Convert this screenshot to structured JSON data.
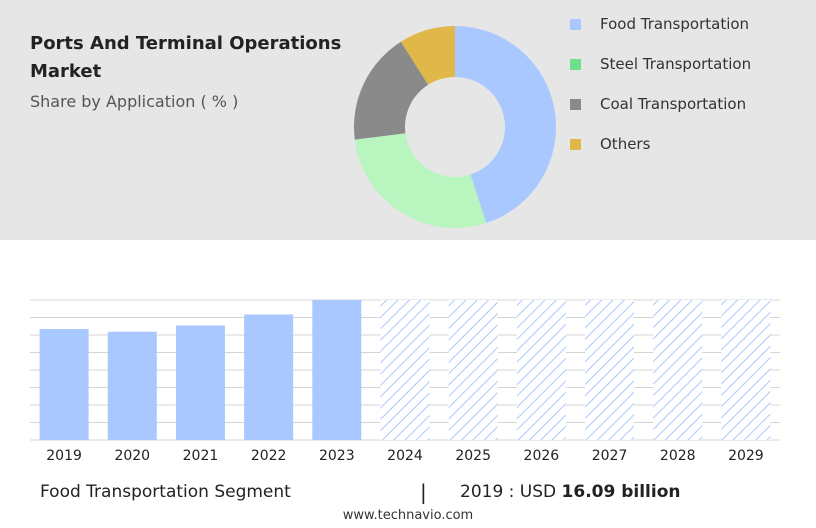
{
  "title": "Ports And Terminal Operations Market",
  "subtitle": "Share by Application ( % )",
  "legend": [
    {
      "label": "Food Transportation",
      "color": "#a8c8ff"
    },
    {
      "label": "Steel Transportation",
      "color": "#6ee08c"
    },
    {
      "label": "Coal Transportation",
      "color": "#8a8a8a"
    },
    {
      "label": "Others",
      "color": "#e0b84a"
    }
  ],
  "chart_data": [
    {
      "type": "pie",
      "subtype": "donut",
      "series": [
        {
          "name": "Food Transportation",
          "value": 45,
          "color": "#a8c8ff"
        },
        {
          "name": "Steel Transportation",
          "value": 28,
          "color": "#b8f5bf"
        },
        {
          "name": "Coal Transportation",
          "value": 18,
          "color": "#8a8a8a"
        },
        {
          "name": "Others",
          "value": 9,
          "color": "#e0b84a"
        }
      ]
    },
    {
      "type": "bar",
      "categories": [
        "2019",
        "2020",
        "2021",
        "2022",
        "2023",
        "2024",
        "2025",
        "2026",
        "2027",
        "2028",
        "2029"
      ],
      "values": [
        16.09,
        15.7,
        16.6,
        18.2,
        20.3,
        null,
        null,
        null,
        null,
        null,
        null
      ],
      "forecast_categories": [
        "2024",
        "2025",
        "2026",
        "2027",
        "2028",
        "2029"
      ],
      "bar_color": "#a8c8ff",
      "forecast_style": "hatched",
      "grid": true
    }
  ],
  "footer": {
    "segment": "Food Transportation Segment",
    "separator": "|",
    "year_prefix": "2019 : USD",
    "value": "16.09 billion"
  },
  "source": "www.technavio.com"
}
